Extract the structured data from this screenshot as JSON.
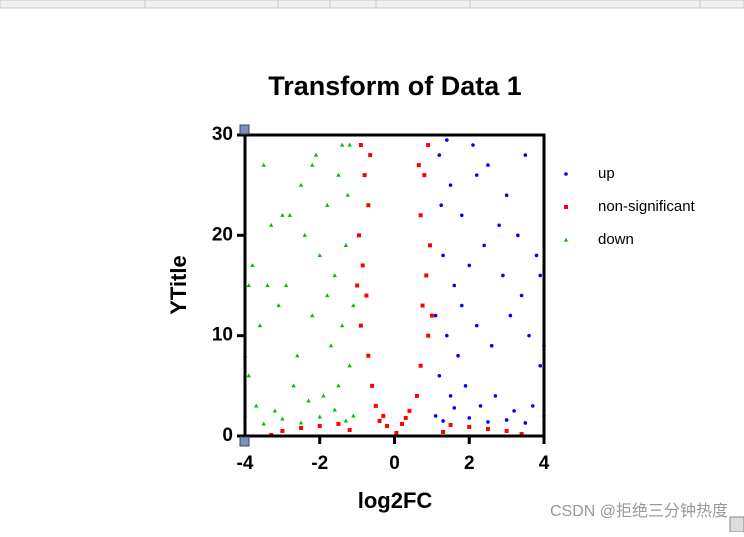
{
  "chart_data": {
    "type": "scatter",
    "title": "Transform of Data 1",
    "x_label": "log2FC",
    "y_label": "YTitle",
    "xlim": [
      -4,
      4
    ],
    "xticks": [
      -4,
      -2,
      0,
      2,
      4
    ],
    "ylim": [
      0,
      30
    ],
    "yticks": [
      0,
      10,
      20,
      30
    ],
    "legend": "right",
    "watermark": "CSDN @拒绝三分钟热度",
    "series": [
      {
        "name": "up",
        "color": "#0000ff",
        "marker": "circle",
        "x": [
          1.2,
          1.5,
          1.8,
          2.1,
          2.5,
          3.0,
          3.5,
          1.3,
          1.6,
          2.0,
          2.4,
          2.9,
          3.3,
          3.8,
          1.1,
          1.4,
          1.7,
          2.2,
          2.6,
          3.1,
          3.6,
          3.9,
          1.2,
          1.5,
          1.9,
          2.3,
          2.7,
          3.2,
          3.7,
          4.0,
          1.1,
          1.3,
          1.6,
          2.0,
          2.5,
          3.0,
          3.5,
          1.8,
          2.8,
          3.4,
          1.25,
          1.4,
          2.2,
          3.9,
          4.0
        ],
        "values": [
          28,
          25,
          22,
          29,
          27,
          24,
          28,
          18,
          15,
          17,
          19,
          16,
          20,
          18,
          12,
          10,
          8,
          11,
          9,
          12,
          10,
          7,
          6,
          4,
          5,
          3,
          4,
          2.5,
          3,
          2,
          2,
          1.5,
          2.8,
          1.8,
          1.4,
          1.6,
          1.3,
          13,
          21,
          14,
          23,
          29.5,
          26,
          16,
          9
        ]
      },
      {
        "name": "non-significant",
        "color": "#ff0000",
        "marker": "square",
        "x": [
          -0.9,
          -0.8,
          -0.7,
          -0.95,
          -0.85,
          -0.75,
          -0.9,
          -0.7,
          -0.6,
          -0.5,
          -0.3,
          -0.2,
          0.9,
          0.8,
          0.7,
          0.95,
          0.85,
          0.75,
          0.9,
          0.7,
          0.6,
          0.4,
          0.2,
          0.05,
          -1.5,
          -2.0,
          -2.5,
          -3.0,
          -3.3,
          1.5,
          2.0,
          2.5,
          3.0,
          3.4,
          -0.65,
          0.65,
          -1.0,
          1.0,
          -0.4,
          0.3,
          -1.2,
          1.3
        ],
        "values": [
          29,
          26,
          23,
          20,
          17,
          14,
          11,
          8,
          5,
          3,
          2,
          1,
          29,
          26,
          22,
          19,
          16,
          13,
          10,
          7,
          4,
          2.5,
          1.2,
          0.3,
          1.2,
          1.0,
          0.8,
          0.5,
          0.1,
          1.1,
          0.9,
          0.7,
          0.5,
          0.2,
          28,
          27,
          15,
          12,
          1.5,
          1.8,
          0.6,
          0.4
        ]
      },
      {
        "name": "down",
        "color": "#00c000",
        "marker": "triangle",
        "x": [
          -1.2,
          -1.5,
          -1.8,
          -2.1,
          -2.5,
          -3.0,
          -3.5,
          -1.3,
          -1.6,
          -2.0,
          -2.4,
          -2.9,
          -3.3,
          -3.8,
          -1.1,
          -1.4,
          -1.7,
          -2.2,
          -2.6,
          -3.1,
          -3.6,
          -3.9,
          -1.2,
          -1.5,
          -1.9,
          -2.3,
          -2.7,
          -3.2,
          -3.7,
          -4.0,
          -1.1,
          -1.3,
          -1.6,
          -2.0,
          -2.5,
          -3.0,
          -3.5,
          -1.8,
          -2.8,
          -3.4,
          -1.25,
          -1.4,
          -2.2,
          -3.9,
          -4.0
        ],
        "values": [
          29,
          26,
          23,
          28,
          25,
          22,
          27,
          19,
          16,
          18,
          20,
          15,
          21,
          17,
          13,
          11,
          9,
          12,
          8,
          13,
          11,
          6,
          7,
          5,
          4,
          3.5,
          5,
          2.5,
          3,
          2,
          2,
          1.5,
          2.6,
          1.9,
          1.3,
          1.7,
          1.2,
          14,
          22,
          15,
          24,
          29,
          27,
          15,
          8
        ]
      }
    ]
  }
}
